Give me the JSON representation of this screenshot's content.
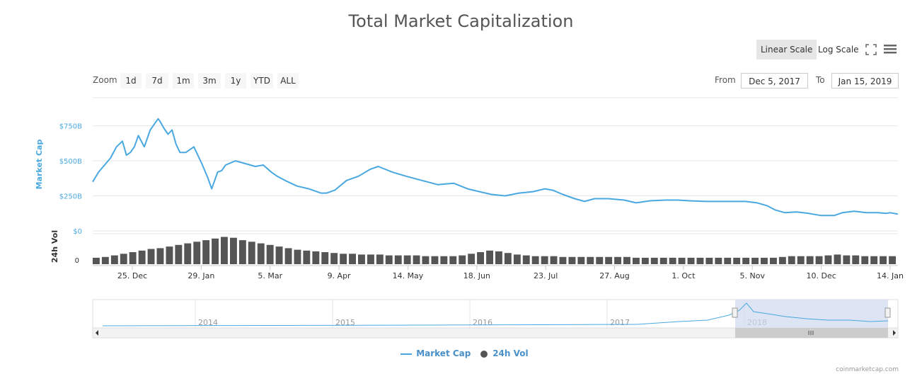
{
  "title": "Total Market Capitalization",
  "scale_buttons": {
    "linear": "Linear Scale",
    "log": "Log Scale"
  },
  "zoom": {
    "label": "Zoom",
    "buttons": [
      "1d",
      "7d",
      "1m",
      "3m",
      "1y",
      "YTD",
      "ALL"
    ]
  },
  "range": {
    "from_label": "From",
    "from_value": "Dec 5, 2017",
    "to_label": "To",
    "to_value": "Jan 15, 2019"
  },
  "legend": {
    "market_cap": "Market Cap",
    "volume": "24h Vol"
  },
  "credit": "coinmarketcap.com",
  "colors": {
    "line": "#4aa8e0",
    "volume": "#555555",
    "navigator_fill": "#cfd9ef",
    "grid": "#e6e6e6"
  },
  "icons": [
    "fullscreen-icon",
    "menu-icon"
  ],
  "chart_data": {
    "type": "line",
    "title": "Total Market Capitalization",
    "x": [
      "2017-12-05",
      "2017-12-08",
      "2017-12-11",
      "2017-12-14",
      "2017-12-17",
      "2017-12-20",
      "2017-12-22",
      "2017-12-24",
      "2017-12-26",
      "2017-12-28",
      "2017-12-31",
      "2018-01-03",
      "2018-01-05",
      "2018-01-07",
      "2018-01-08",
      "2018-01-10",
      "2018-01-12",
      "2018-01-14",
      "2018-01-16",
      "2018-01-18",
      "2018-01-21",
      "2018-01-25",
      "2018-01-29",
      "2018-02-01",
      "2018-02-03",
      "2018-02-05",
      "2018-02-06",
      "2018-02-08",
      "2018-02-10",
      "2018-02-15",
      "2018-02-20",
      "2018-02-25",
      "2018-03-01",
      "2018-03-05",
      "2018-03-08",
      "2018-03-12",
      "2018-03-18",
      "2018-03-24",
      "2018-03-30",
      "2018-04-02",
      "2018-04-06",
      "2018-04-12",
      "2018-04-18",
      "2018-04-24",
      "2018-04-28",
      "2018-05-05",
      "2018-05-12",
      "2018-05-20",
      "2018-05-28",
      "2018-06-05",
      "2018-06-12",
      "2018-06-18",
      "2018-06-24",
      "2018-07-01",
      "2018-07-08",
      "2018-07-15",
      "2018-07-21",
      "2018-07-25",
      "2018-07-30",
      "2018-08-05",
      "2018-08-10",
      "2018-08-15",
      "2018-08-22",
      "2018-08-30",
      "2018-09-05",
      "2018-09-12",
      "2018-09-20",
      "2018-09-26",
      "2018-10-02",
      "2018-10-10",
      "2018-10-12",
      "2018-10-20",
      "2018-10-30",
      "2018-11-05",
      "2018-11-10",
      "2018-11-14",
      "2018-11-19",
      "2018-11-25",
      "2018-12-01",
      "2018-12-07",
      "2018-12-14",
      "2018-12-18",
      "2018-12-24",
      "2018-12-30",
      "2019-01-05",
      "2019-01-09",
      "2019-01-11",
      "2019-01-15"
    ],
    "y": [
      350,
      420,
      470,
      520,
      600,
      640,
      540,
      560,
      600,
      680,
      600,
      720,
      760,
      800,
      780,
      730,
      690,
      720,
      620,
      560,
      560,
      600,
      480,
      380,
      300,
      380,
      420,
      430,
      470,
      500,
      480,
      460,
      470,
      420,
      390,
      360,
      320,
      300,
      270,
      270,
      290,
      360,
      390,
      440,
      460,
      420,
      390,
      360,
      330,
      340,
      300,
      280,
      260,
      250,
      270,
      280,
      300,
      290,
      260,
      230,
      210,
      230,
      230,
      220,
      200,
      215,
      220,
      220,
      215,
      210,
      210,
      210,
      210,
      200,
      180,
      150,
      130,
      135,
      125,
      110,
      110,
      130,
      140,
      130,
      130,
      125,
      130,
      120
    ],
    "xlabel": "",
    "ylabel": "Market Cap",
    "y_ticks": [
      "$0",
      "$250B",
      "$500B",
      "$750B"
    ],
    "ylim": [
      0,
      950
    ],
    "x_tick_labels": [
      "25. Dec",
      "29. Jan",
      "5. Mar",
      "9. Apr",
      "14. May",
      "18. Jun",
      "23. Jul",
      "27. Aug",
      "1. Oct",
      "5. Nov",
      "10. Dec",
      "14. Jan"
    ],
    "volume": {
      "ylabel": "24h Vol",
      "y_ticks": [
        "0"
      ],
      "series": [
        8,
        9,
        11,
        13,
        15,
        17,
        19,
        20,
        22,
        24,
        26,
        28,
        30,
        32,
        34,
        33,
        30,
        28,
        26,
        24,
        22,
        20,
        18,
        17,
        16,
        15,
        14,
        13,
        13,
        12,
        12,
        12,
        11,
        11,
        11,
        11,
        10,
        10,
        10,
        10,
        11,
        13,
        15,
        17,
        16,
        14,
        12,
        11,
        10,
        10,
        10,
        9,
        9,
        9,
        9,
        9,
        9,
        9,
        9,
        8,
        8,
        8,
        8,
        8,
        8,
        8,
        8,
        8,
        8,
        8,
        8,
        8,
        8,
        8,
        8,
        9,
        10,
        10,
        10,
        10,
        11,
        12,
        11,
        11,
        10,
        10,
        10,
        10
      ]
    },
    "navigator": {
      "year_labels": [
        "2014",
        "2015",
        "2016",
        "2017",
        "2018"
      ],
      "selection_note": "Dec 2017 – Jan 2019"
    },
    "legend": [
      "Market Cap",
      "24h Vol"
    ],
    "grid": true
  }
}
